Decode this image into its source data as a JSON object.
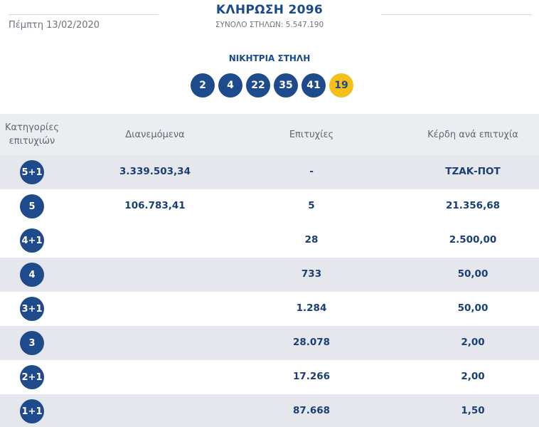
{
  "header": {
    "date": "Πέμπτη 13/02/2020",
    "draw_title": "ΚΛΗΡΩΣΗ 2096",
    "columns_total": "ΣΥΝΟΛΟ ΣΤΗΛΩΝ: 5.547.190"
  },
  "winning": {
    "title": "ΝΙΚΗΤΡΙΑ ΣΤΗΛΗ",
    "numbers": [
      "2",
      "4",
      "22",
      "35",
      "41"
    ],
    "joker": "19",
    "colors": {
      "ball": "#1e4b8c",
      "joker": "#f5c017"
    }
  },
  "table": {
    "headers": {
      "category": "Κατηγορίες επιτυχιών",
      "distributed": "Διανεμόμενα",
      "wins": "Επιτυχίες",
      "prize": "Κέρδη ανά επιτυχία"
    },
    "rows": [
      {
        "category": "5+1",
        "distributed": "3.339.503,34",
        "wins": "-",
        "prize": "ΤΖΑΚ-ΠΟΤ"
      },
      {
        "category": "5",
        "distributed": "106.783,41",
        "wins": "5",
        "prize": "21.356,68"
      },
      {
        "category": "4+1",
        "distributed": "",
        "wins": "28",
        "prize": "2.500,00"
      },
      {
        "category": "4",
        "distributed": "",
        "wins": "733",
        "prize": "50,00"
      },
      {
        "category": "3+1",
        "distributed": "",
        "wins": "1.284",
        "prize": "50,00"
      },
      {
        "category": "3",
        "distributed": "",
        "wins": "28.078",
        "prize": "2,00"
      },
      {
        "category": "2+1",
        "distributed": "",
        "wins": "17.266",
        "prize": "2,00"
      },
      {
        "category": "1+1",
        "distributed": "",
        "wins": "87.668",
        "prize": "1,50"
      }
    ]
  }
}
